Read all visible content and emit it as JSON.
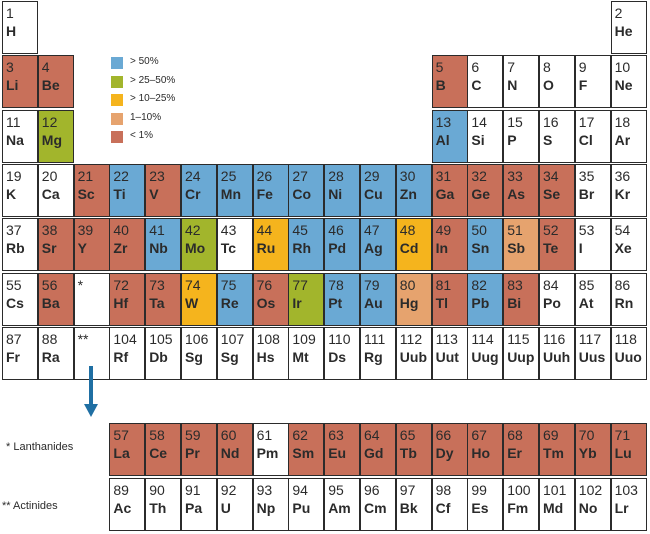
{
  "colors": {
    "gt50": "#6aa9d4",
    "r25_50": "#a2b52c",
    "r10_25": "#f5b41d",
    "r1_10": "#e6a36e",
    "lt1": "#c8705a",
    "none": "#ffffff"
  },
  "legend": [
    {
      "label": "> 50%",
      "color": "gt50"
    },
    {
      "label": "> 25–50%",
      "color": "r25_50"
    },
    {
      "label": "> 10–25%",
      "color": "r10_25"
    },
    {
      "label": "1–10%",
      "color": "r1_10"
    },
    {
      "label": "< 1%",
      "color": "lt1"
    }
  ],
  "row_labels": {
    "lanthanides": "* Lanthanides",
    "actinides": "** Actinides"
  },
  "elements": [
    {
      "n": "1",
      "s": "H",
      "c": "none"
    },
    {
      "n": "2",
      "s": "He",
      "c": "none"
    },
    {
      "n": "3",
      "s": "Li",
      "c": "lt1"
    },
    {
      "n": "4",
      "s": "Be",
      "c": "lt1"
    },
    {
      "n": "5",
      "s": "B",
      "c": "lt1"
    },
    {
      "n": "6",
      "s": "C",
      "c": "none"
    },
    {
      "n": "7",
      "s": "N",
      "c": "none"
    },
    {
      "n": "8",
      "s": "O",
      "c": "none"
    },
    {
      "n": "9",
      "s": "F",
      "c": "none"
    },
    {
      "n": "10",
      "s": "Ne",
      "c": "none"
    },
    {
      "n": "11",
      "s": "Na",
      "c": "none"
    },
    {
      "n": "12",
      "s": "Mg",
      "c": "r25_50"
    },
    {
      "n": "13",
      "s": "Al",
      "c": "gt50"
    },
    {
      "n": "14",
      "s": "Si",
      "c": "none"
    },
    {
      "n": "15",
      "s": "P",
      "c": "none"
    },
    {
      "n": "16",
      "s": "S",
      "c": "none"
    },
    {
      "n": "17",
      "s": "Cl",
      "c": "none"
    },
    {
      "n": "18",
      "s": "Ar",
      "c": "none"
    },
    {
      "n": "19",
      "s": "K",
      "c": "none"
    },
    {
      "n": "20",
      "s": "Ca",
      "c": "none"
    },
    {
      "n": "21",
      "s": "Sc",
      "c": "lt1"
    },
    {
      "n": "22",
      "s": "Ti",
      "c": "gt50"
    },
    {
      "n": "23",
      "s": "V",
      "c": "lt1"
    },
    {
      "n": "24",
      "s": "Cr",
      "c": "gt50"
    },
    {
      "n": "25",
      "s": "Mn",
      "c": "gt50"
    },
    {
      "n": "26",
      "s": "Fe",
      "c": "gt50"
    },
    {
      "n": "27",
      "s": "Co",
      "c": "gt50"
    },
    {
      "n": "28",
      "s": "Ni",
      "c": "gt50"
    },
    {
      "n": "29",
      "s": "Cu",
      "c": "gt50"
    },
    {
      "n": "30",
      "s": "Zn",
      "c": "gt50"
    },
    {
      "n": "31",
      "s": "Ga",
      "c": "lt1"
    },
    {
      "n": "32",
      "s": "Ge",
      "c": "lt1"
    },
    {
      "n": "33",
      "s": "As",
      "c": "lt1"
    },
    {
      "n": "34",
      "s": "Se",
      "c": "lt1"
    },
    {
      "n": "35",
      "s": "Br",
      "c": "none"
    },
    {
      "n": "36",
      "s": "Kr",
      "c": "none"
    },
    {
      "n": "37",
      "s": "Rb",
      "c": "none"
    },
    {
      "n": "38",
      "s": "Sr",
      "c": "lt1"
    },
    {
      "n": "39",
      "s": "Y",
      "c": "lt1"
    },
    {
      "n": "40",
      "s": "Zr",
      "c": "lt1"
    },
    {
      "n": "41",
      "s": "Nb",
      "c": "gt50"
    },
    {
      "n": "42",
      "s": "Mo",
      "c": "r25_50"
    },
    {
      "n": "43",
      "s": "Tc",
      "c": "none"
    },
    {
      "n": "44",
      "s": "Ru",
      "c": "r10_25"
    },
    {
      "n": "45",
      "s": "Rh",
      "c": "gt50"
    },
    {
      "n": "46",
      "s": "Pd",
      "c": "gt50"
    },
    {
      "n": "47",
      "s": "Ag",
      "c": "gt50"
    },
    {
      "n": "48",
      "s": "Cd",
      "c": "r10_25"
    },
    {
      "n": "49",
      "s": "In",
      "c": "lt1"
    },
    {
      "n": "50",
      "s": "Sn",
      "c": "gt50"
    },
    {
      "n": "51",
      "s": "Sb",
      "c": "r1_10"
    },
    {
      "n": "52",
      "s": "Te",
      "c": "lt1"
    },
    {
      "n": "53",
      "s": "I",
      "c": "none"
    },
    {
      "n": "54",
      "s": "Xe",
      "c": "none"
    },
    {
      "n": "55",
      "s": "Cs",
      "c": "none"
    },
    {
      "n": "56",
      "s": "Ba",
      "c": "lt1"
    },
    {
      "n": "*",
      "s": "",
      "c": "none"
    },
    {
      "n": "72",
      "s": "Hf",
      "c": "lt1"
    },
    {
      "n": "73",
      "s": "Ta",
      "c": "lt1"
    },
    {
      "n": "74",
      "s": "W",
      "c": "r10_25"
    },
    {
      "n": "75",
      "s": "Re",
      "c": "gt50"
    },
    {
      "n": "76",
      "s": "Os",
      "c": "lt1"
    },
    {
      "n": "77",
      "s": "Ir",
      "c": "r25_50"
    },
    {
      "n": "78",
      "s": "Pt",
      "c": "gt50"
    },
    {
      "n": "79",
      "s": "Au",
      "c": "gt50"
    },
    {
      "n": "80",
      "s": "Hg",
      "c": "r1_10"
    },
    {
      "n": "81",
      "s": "Tl",
      "c": "lt1"
    },
    {
      "n": "82",
      "s": "Pb",
      "c": "gt50"
    },
    {
      "n": "83",
      "s": "Bi",
      "c": "lt1"
    },
    {
      "n": "84",
      "s": "Po",
      "c": "none"
    },
    {
      "n": "85",
      "s": "At",
      "c": "none"
    },
    {
      "n": "86",
      "s": "Rn",
      "c": "none"
    },
    {
      "n": "87",
      "s": "Fr",
      "c": "none"
    },
    {
      "n": "88",
      "s": "Ra",
      "c": "none"
    },
    {
      "n": "**",
      "s": "",
      "c": "none"
    },
    {
      "n": "104",
      "s": "Rf",
      "c": "none"
    },
    {
      "n": "105",
      "s": "Db",
      "c": "none"
    },
    {
      "n": "106",
      "s": "Sg",
      "c": "none"
    },
    {
      "n": "107",
      "s": "Sg",
      "c": "none"
    },
    {
      "n": "108",
      "s": "Hs",
      "c": "none"
    },
    {
      "n": "109",
      "s": "Mt",
      "c": "none"
    },
    {
      "n": "110",
      "s": "Ds",
      "c": "none"
    },
    {
      "n": "111",
      "s": "Rg",
      "c": "none"
    },
    {
      "n": "112",
      "s": "Uub",
      "c": "none"
    },
    {
      "n": "113",
      "s": "Uut",
      "c": "none"
    },
    {
      "n": "114",
      "s": "Uug",
      "c": "none"
    },
    {
      "n": "115",
      "s": "Uup",
      "c": "none"
    },
    {
      "n": "116",
      "s": "Uuh",
      "c": "none"
    },
    {
      "n": "117",
      "s": "Uus",
      "c": "none"
    },
    {
      "n": "118",
      "s": "Uuo",
      "c": "none"
    },
    {
      "n": "57",
      "s": "La",
      "c": "lt1"
    },
    {
      "n": "58",
      "s": "Ce",
      "c": "lt1"
    },
    {
      "n": "59",
      "s": "Pr",
      "c": "lt1"
    },
    {
      "n": "60",
      "s": "Nd",
      "c": "lt1"
    },
    {
      "n": "61",
      "s": "Pm",
      "c": "none"
    },
    {
      "n": "62",
      "s": "Sm",
      "c": "lt1"
    },
    {
      "n": "63",
      "s": "Eu",
      "c": "lt1"
    },
    {
      "n": "64",
      "s": "Gd",
      "c": "lt1"
    },
    {
      "n": "65",
      "s": "Tb",
      "c": "lt1"
    },
    {
      "n": "66",
      "s": "Dy",
      "c": "lt1"
    },
    {
      "n": "67",
      "s": "Ho",
      "c": "lt1"
    },
    {
      "n": "68",
      "s": "Er",
      "c": "lt1"
    },
    {
      "n": "69",
      "s": "Tm",
      "c": "lt1"
    },
    {
      "n": "70",
      "s": "Yb",
      "c": "lt1"
    },
    {
      "n": "71",
      "s": "Lu",
      "c": "lt1"
    },
    {
      "n": "89",
      "s": "Ac",
      "c": "none"
    },
    {
      "n": "90",
      "s": "Th",
      "c": "none"
    },
    {
      "n": "91",
      "s": "Pa",
      "c": "none"
    },
    {
      "n": "92",
      "s": "U",
      "c": "none"
    },
    {
      "n": "93",
      "s": "Np",
      "c": "none"
    },
    {
      "n": "94",
      "s": "Pu",
      "c": "none"
    },
    {
      "n": "95",
      "s": "Am",
      "c": "none"
    },
    {
      "n": "96",
      "s": "Cm",
      "c": "none"
    },
    {
      "n": "97",
      "s": "Bk",
      "c": "none"
    },
    {
      "n": "98",
      "s": "Cf",
      "c": "none"
    },
    {
      "n": "99",
      "s": "Es",
      "c": "none"
    },
    {
      "n": "100",
      "s": "Fm",
      "c": "none"
    },
    {
      "n": "101",
      "s": "Md",
      "c": "none"
    },
    {
      "n": "102",
      "s": "No",
      "c": "none"
    },
    {
      "n": "103",
      "s": "Lr",
      "c": "none"
    }
  ]
}
